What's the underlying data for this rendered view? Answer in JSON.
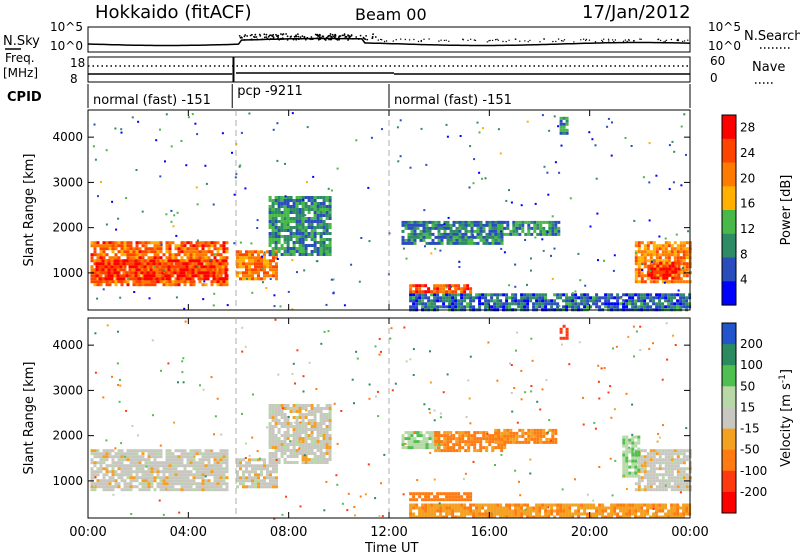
{
  "header": {
    "station": "Hokkaido (fitACF)",
    "beam": "Beam 00",
    "date": "17/Jan/2012"
  },
  "noise_panel": {
    "left_label": "N.Sky",
    "right_label": "N.Search",
    "left_ticks": [
      "10^5",
      "10^0"
    ],
    "right_ticks": [
      "10^5",
      "10^0"
    ]
  },
  "freq_panel": {
    "left_label_1": "Freq.",
    "left_label_2": "[MHz]",
    "right_label": "Nave",
    "left_ticks": [
      "18",
      "8"
    ],
    "right_ticks": [
      "60",
      "0"
    ],
    "freq_mhz": 10.5,
    "nave": 38
  },
  "cpid": {
    "label": "CPID",
    "segments": [
      {
        "name": "normal (fast) -151",
        "start_h": 0,
        "end_h": 5.75
      },
      {
        "name": "pcp -9211",
        "start_h": 5.75,
        "end_h": 12.0
      },
      {
        "name": "normal (fast) -151",
        "start_h": 12.0,
        "end_h": 24.0
      }
    ]
  },
  "chart_data": [
    {
      "type": "heatmap",
      "title": "",
      "xlabel": "Time UT",
      "ylabel": "Slant Range [km]",
      "xlim": [
        0,
        24
      ],
      "ylim": [
        180,
        4600
      ],
      "x_ticks": [
        "00:00",
        "04:00",
        "08:00",
        "12:00",
        "16:00",
        "20:00",
        "00:00"
      ],
      "x_tick_hours": [
        0,
        4,
        8,
        12,
        16,
        20,
        24
      ],
      "y_ticks": [
        "1000",
        "2000",
        "3000",
        "4000"
      ],
      "y_tick_values": [
        1000,
        2000,
        3000,
        4000
      ],
      "colorbar": {
        "label": "Power [dB]",
        "ticks": [
          "4",
          "8",
          "12",
          "16",
          "20",
          "24",
          "28"
        ],
        "tick_values": [
          4,
          8,
          12,
          16,
          20,
          24,
          28
        ],
        "range": [
          0,
          30
        ]
      },
      "regions": [
        {
          "t0": 0.1,
          "t1": 5.6,
          "r0": 750,
          "r1": 1700,
          "level": 22
        },
        {
          "t0": 0.3,
          "t1": 5.5,
          "r0": 900,
          "r1": 1300,
          "level": 26
        },
        {
          "t0": 5.9,
          "t1": 7.5,
          "r0": 900,
          "r1": 1500,
          "level": 21
        },
        {
          "t0": 7.2,
          "t1": 9.7,
          "r0": 1400,
          "r1": 2700,
          "level": 10
        },
        {
          "t0": 12.5,
          "t1": 16.5,
          "r0": 1650,
          "r1": 2150,
          "level": 9
        },
        {
          "t0": 16.2,
          "t1": 18.8,
          "r0": 1850,
          "r1": 2150,
          "level": 10
        },
        {
          "t0": 12.8,
          "t1": 15.2,
          "r0": 600,
          "r1": 750,
          "level": 24
        },
        {
          "t0": 21.8,
          "t1": 24.0,
          "r0": 800,
          "r1": 1700,
          "level": 20
        },
        {
          "t0": 22.3,
          "t1": 23.6,
          "r0": 900,
          "r1": 1250,
          "level": 27
        },
        {
          "t0": 18.8,
          "t1": 19.1,
          "r0": 4100,
          "r1": 4450,
          "level": 10
        },
        {
          "t0": 12.8,
          "t1": 24.0,
          "r0": 200,
          "r1": 550,
          "level": 7
        }
      ]
    },
    {
      "type": "heatmap",
      "title": "",
      "xlabel": "Time UT",
      "ylabel": "Slant Range [km]",
      "xlim": [
        0,
        24
      ],
      "ylim": [
        180,
        4600
      ],
      "x_ticks": [
        "00:00",
        "04:00",
        "08:00",
        "12:00",
        "16:00",
        "20:00",
        "00:00"
      ],
      "x_tick_hours": [
        0,
        4,
        8,
        12,
        16,
        20,
        24
      ],
      "y_ticks": [
        "1000",
        "2000",
        "3000",
        "4000"
      ],
      "y_tick_values": [
        1000,
        2000,
        3000,
        4000
      ],
      "colorbar": {
        "label": "Velocity [m s-1]",
        "label_main": "Velocity [m s",
        "label_sup": "-1",
        "label_end": "]",
        "ticks": [
          "200",
          "100",
          "50",
          "15",
          "-15",
          "-50",
          "-100",
          "-200"
        ],
        "tick_values": [
          200,
          100,
          50,
          15,
          -15,
          -50,
          -100,
          -200
        ]
      },
      "regions": [
        {
          "t0": 0.1,
          "t1": 5.6,
          "r0": 800,
          "r1": 1700,
          "level": 0
        },
        {
          "t0": 5.9,
          "t1": 7.5,
          "r0": 900,
          "r1": 1500,
          "level": 0
        },
        {
          "t0": 7.2,
          "t1": 9.7,
          "r0": 1400,
          "r1": 2700,
          "level": 0
        },
        {
          "t0": 12.5,
          "t1": 14.0,
          "r0": 1750,
          "r1": 2100,
          "level": 40
        },
        {
          "t0": 13.8,
          "t1": 16.6,
          "r0": 1650,
          "r1": 2100,
          "level": -60
        },
        {
          "t0": 16.2,
          "t1": 18.7,
          "r0": 1850,
          "r1": 2150,
          "level": -55
        },
        {
          "t0": 12.8,
          "t1": 15.2,
          "r0": 600,
          "r1": 750,
          "level": -70
        },
        {
          "t0": 21.8,
          "t1": 24.0,
          "r0": 800,
          "r1": 1700,
          "level": 0
        },
        {
          "t0": 21.3,
          "t1": 21.9,
          "r0": 1100,
          "r1": 2000,
          "level": 45
        },
        {
          "t0": 18.8,
          "t1": 19.1,
          "r0": 4150,
          "r1": 4450,
          "level": -180
        },
        {
          "t0": 12.8,
          "t1": 24.0,
          "r0": 200,
          "r1": 500,
          "level": -40
        }
      ]
    }
  ],
  "colors": {
    "power_scale": [
      "#0000ff",
      "#2a4dbd",
      "#2f8a66",
      "#48b848",
      "#ffb000",
      "#ff7a00",
      "#ff4400",
      "#ff0000"
    ],
    "velocity_scale": [
      "#2255cc",
      "#2c8a60",
      "#4fc050",
      "#b8d8a8",
      "#c8c8c0",
      "#f4a020",
      "#ff7a10",
      "#ff3a10",
      "#ff0000"
    ]
  }
}
